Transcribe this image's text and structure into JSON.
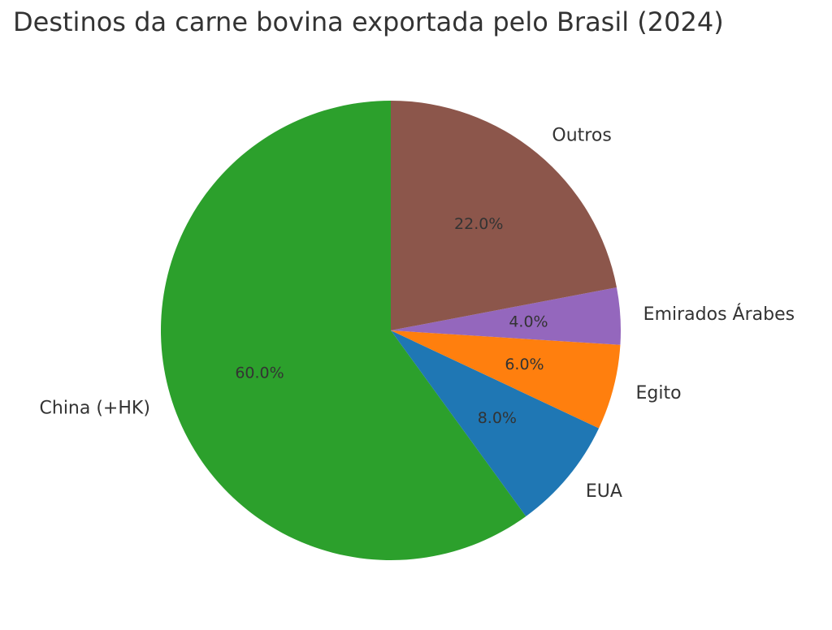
{
  "chart_data": {
    "type": "pie",
    "title": "Destinos da carne bovina exportada pelo Brasil (2024)",
    "start_angle_deg": 90,
    "direction": "counterclockwise",
    "slices": [
      {
        "label": "China (+HK)",
        "value": 60.0,
        "pct_label": "60.0%",
        "color": "#2ca02c"
      },
      {
        "label": "EUA",
        "value": 8.0,
        "pct_label": "8.0%",
        "color": "#1f77b4"
      },
      {
        "label": "Egito",
        "value": 6.0,
        "pct_label": "6.0%",
        "color": "#ff7f0e"
      },
      {
        "label": "Emirados Árabes",
        "value": 4.0,
        "pct_label": "4.0%",
        "color": "#9467bd"
      },
      {
        "label": "Outros",
        "value": 22.0,
        "pct_label": "22.0%",
        "color": "#8c564b"
      }
    ]
  }
}
